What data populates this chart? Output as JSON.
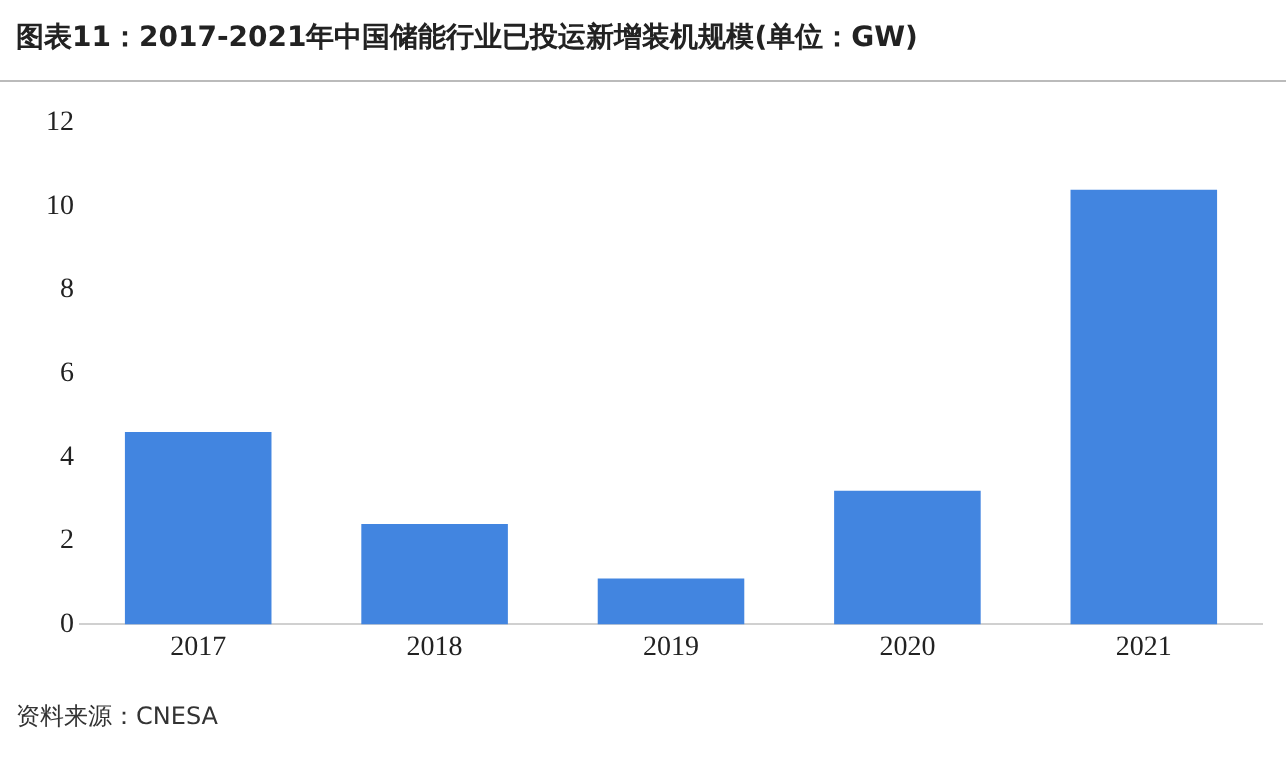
{
  "chart_data": {
    "type": "bar",
    "title": "图表11：2017-2021年中国储能行业已投运新增装机规模(单位：GW)",
    "categories": [
      "2017",
      "2018",
      "2019",
      "2020",
      "2021"
    ],
    "values": [
      4.6,
      2.4,
      1.1,
      3.2,
      10.4
    ],
    "color": "#4285e0",
    "ylim": [
      0,
      12
    ],
    "yticks": [
      0,
      2,
      4,
      6,
      8,
      10,
      12
    ],
    "grid": false,
    "legend": false,
    "annotations": [
      "资料来源：CNESA"
    ]
  }
}
